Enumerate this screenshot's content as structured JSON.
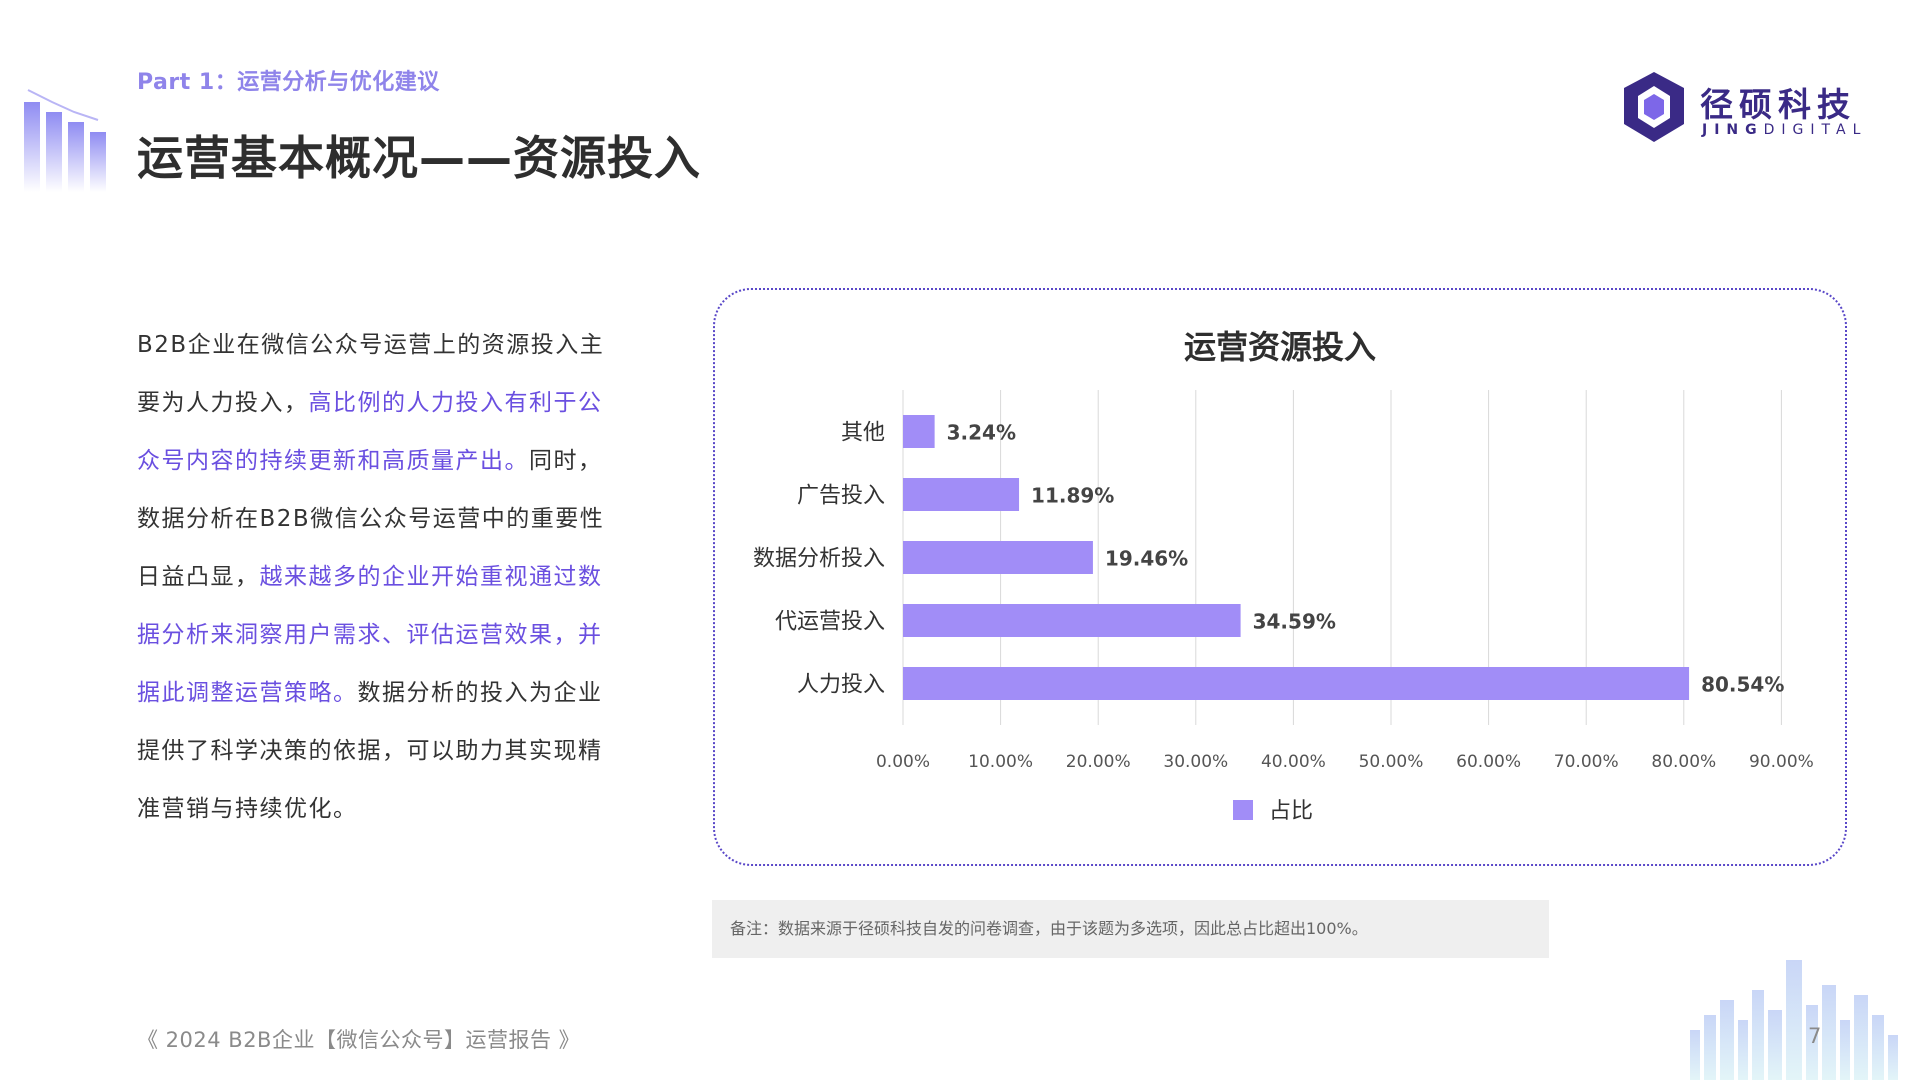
{
  "header": {
    "part_label": "Part 1：运营分析与优化建议",
    "title": "运营基本概况——资源投入"
  },
  "logo": {
    "cn": "径硕科技",
    "en_bold": "JING",
    "en_rest": "DIGITAL"
  },
  "body": {
    "segments": [
      {
        "text": "B2B企业在微信公众号运营上的资源投入主要为人力投入，",
        "highlight": false
      },
      {
        "text": "高比例的人力投入有利于公众号内容的持续更新和高质量产出。",
        "highlight": true
      },
      {
        "text": "同时，数据分析在B2B微信公众号运营中的重要性日益凸显，",
        "highlight": false
      },
      {
        "text": "越来越多的企业开始重视通过数据分析来洞察用户需求、评估运营效果，并据此调整运营策略。",
        "highlight": true
      },
      {
        "text": "数据分析的投入为企业提供了科学决策的依据，可以助力其实现精准营销与持续优化。",
        "highlight": false
      }
    ]
  },
  "chart_data": {
    "type": "bar",
    "orientation": "horizontal",
    "title": "运营资源投入",
    "categories": [
      "其他",
      "广告投入",
      "数据分析投入",
      "代运营投入",
      "人力投入"
    ],
    "values": [
      3.24,
      11.89,
      19.46,
      34.59,
      80.54
    ],
    "value_labels": [
      "3.24%",
      "11.89%",
      "19.46%",
      "34.59%",
      "80.54%"
    ],
    "x_ticks": [
      "0.00%",
      "10.00%",
      "20.00%",
      "30.00%",
      "40.00%",
      "50.00%",
      "60.00%",
      "70.00%",
      "80.00%",
      "90.00%"
    ],
    "xlim": [
      0,
      90
    ],
    "grid": true,
    "legend": {
      "name": "占比",
      "placement": "bottom-center"
    },
    "color": "#a18df7"
  },
  "note": "备注：数据来源于径硕科技自发的问卷调查，由于该题为多选项，因此总占比超出100%。",
  "footer": {
    "report": "《 2024 B2B企业【微信公众号】运营报告 》",
    "page": "7"
  },
  "colors": {
    "accent": "#6a4fe0",
    "part_label": "#8f84ea",
    "logo": "#3a2a86",
    "bar": "#a18df7",
    "chart_border": "#5a48c8"
  }
}
